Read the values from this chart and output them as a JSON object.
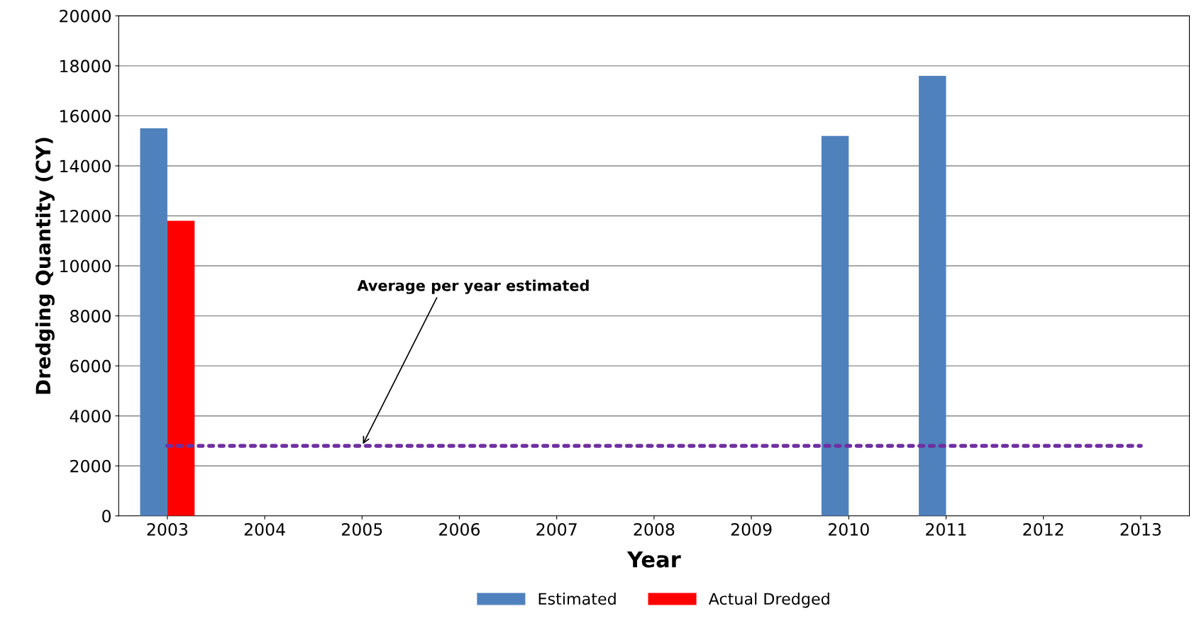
{
  "chart_data": {
    "type": "bar",
    "xlabel": "Year",
    "ylabel": "Dredging Quantity (CY)",
    "categories": [
      "2003",
      "2004",
      "2005",
      "2006",
      "2007",
      "2008",
      "2009",
      "2010",
      "2011",
      "2012",
      "2013"
    ],
    "series": [
      {
        "name": "Estimated",
        "color": "#4f81bd",
        "values": [
          15500,
          null,
          null,
          null,
          null,
          null,
          null,
          15200,
          17600,
          null,
          null
        ]
      },
      {
        "name": "Actual Dredged",
        "color": "#ff0000",
        "values": [
          11800,
          null,
          null,
          null,
          null,
          null,
          null,
          null,
          null,
          null,
          null
        ]
      },
      {
        "type": "line",
        "color": "#7030a0",
        "line_style": "dotted",
        "values": [
          2800,
          2800,
          2800,
          2800,
          2800,
          2800,
          2800,
          2800,
          2800,
          2800,
          2800
        ]
      }
    ],
    "ylim": [
      0,
      20000
    ],
    "yticks": [
      0,
      2000,
      4000,
      6000,
      8000,
      10000,
      12000,
      14000,
      16000,
      18000,
      20000
    ],
    "grid": "y",
    "legend": "bottom",
    "annotations": [
      {
        "text": "Average per year estimated",
        "x": "2005",
        "y": 2800
      }
    ]
  }
}
